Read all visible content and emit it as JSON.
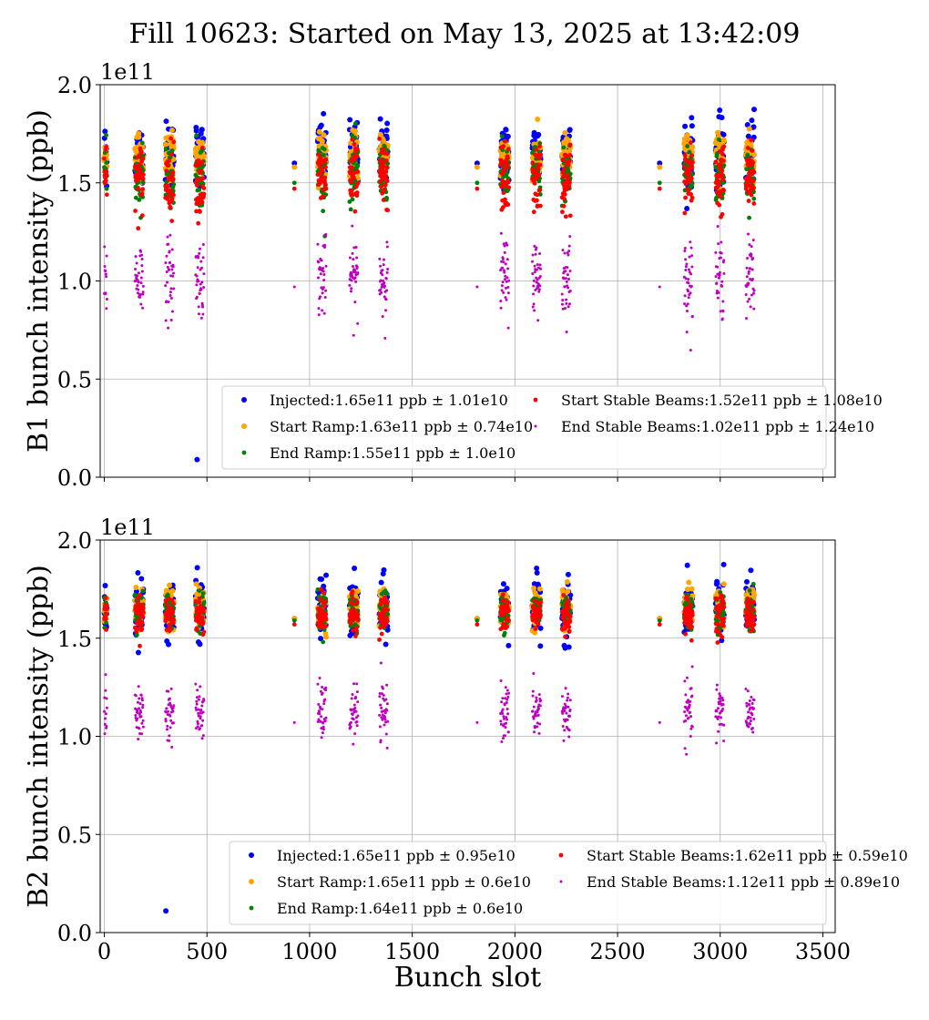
{
  "figure": {
    "title": "Fill 10623: Started on May 13, 2025 at 13:42:09",
    "xlabel": "Bunch slot",
    "exponent_label": "1e11"
  },
  "chart_data": [
    {
      "type": "scatter",
      "ylabel": "B1 bunch intensity (ppb)",
      "xlim": [
        -20,
        3560
      ],
      "ylim": [
        0.0,
        2.0
      ],
      "y_scale_note": "1e11",
      "xticks": [
        0,
        500,
        1000,
        1500,
        2000,
        2500,
        3000,
        3500
      ],
      "yticks": [
        0.0,
        0.5,
        1.0,
        1.5,
        2.0
      ],
      "ytick_labels": [
        "0.0",
        "0.5",
        "1.0",
        "1.5",
        "2.0"
      ],
      "grid": true,
      "legend_position": "lower-right",
      "trains": [
        {
          "x_start": 0,
          "n": 12,
          "step": 1
        },
        {
          "x_start": 150,
          "n": 36,
          "step": 1
        },
        {
          "x_start": 298,
          "n": 36,
          "step": 1
        },
        {
          "x_start": 445,
          "n": 36,
          "step": 1
        },
        {
          "x_start": 926,
          "n": 1,
          "step": 1
        },
        {
          "x_start": 1040,
          "n": 36,
          "step": 1
        },
        {
          "x_start": 1195,
          "n": 36,
          "step": 1
        },
        {
          "x_start": 1340,
          "n": 36,
          "step": 1
        },
        {
          "x_start": 1816,
          "n": 1,
          "step": 1
        },
        {
          "x_start": 1930,
          "n": 36,
          "step": 1
        },
        {
          "x_start": 2085,
          "n": 36,
          "step": 1
        },
        {
          "x_start": 2230,
          "n": 36,
          "step": 1
        },
        {
          "x_start": 2705,
          "n": 1,
          "step": 1
        },
        {
          "x_start": 2825,
          "n": 36,
          "step": 1
        },
        {
          "x_start": 2978,
          "n": 36,
          "step": 1
        },
        {
          "x_start": 3125,
          "n": 36,
          "step": 1
        }
      ],
      "series": [
        {
          "name": "Injected:1.65e11 ppb ± 1.01e10",
          "color": "#0000ff",
          "marker_size": 3.0,
          "mean": 1.65,
          "sd": 0.101,
          "outliers": [
            {
              "x": 452,
              "y": 0.09
            }
          ]
        },
        {
          "name": "Start Ramp:1.63e11 ppb ± 0.74e10",
          "color": "#ffa500",
          "marker_size": 3.0,
          "mean": 1.63,
          "sd": 0.074,
          "outliers": []
        },
        {
          "name": "End Ramp:1.55e11 ppb ± 1.0e10",
          "color": "#008000",
          "marker_size": 2.4,
          "mean": 1.55,
          "sd": 0.1,
          "outliers": []
        },
        {
          "name": "Start Stable Beams:1.52e11 ppb ± 1.08e10",
          "color": "#ff0000",
          "marker_size": 2.4,
          "mean": 1.52,
          "sd": 0.108,
          "outliers": []
        },
        {
          "name": "End Stable Beams:1.02e11 ppb ± 1.24e10",
          "color": "#c000c0",
          "marker_size": 1.5,
          "mean": 1.02,
          "sd": 0.124,
          "outliers": []
        }
      ]
    },
    {
      "type": "scatter",
      "ylabel": "B2 bunch intensity (ppb)",
      "xlabel": "Bunch slot",
      "xlim": [
        -20,
        3560
      ],
      "ylim": [
        0.0,
        2.0
      ],
      "y_scale_note": "1e11",
      "xticks": [
        0,
        500,
        1000,
        1500,
        2000,
        2500,
        3000,
        3500
      ],
      "xtick_labels": [
        "0",
        "500",
        "1000",
        "1500",
        "2000",
        "2500",
        "3000",
        "3500"
      ],
      "yticks": [
        0.0,
        0.5,
        1.0,
        1.5,
        2.0
      ],
      "ytick_labels": [
        "0.0",
        "0.5",
        "1.0",
        "1.5",
        "2.0"
      ],
      "grid": true,
      "legend_position": "lower-right",
      "trains": [
        {
          "x_start": 0,
          "n": 12,
          "step": 1
        },
        {
          "x_start": 150,
          "n": 36,
          "step": 1
        },
        {
          "x_start": 298,
          "n": 36,
          "step": 1
        },
        {
          "x_start": 445,
          "n": 36,
          "step": 1
        },
        {
          "x_start": 926,
          "n": 1,
          "step": 1
        },
        {
          "x_start": 1040,
          "n": 36,
          "step": 1
        },
        {
          "x_start": 1195,
          "n": 36,
          "step": 1
        },
        {
          "x_start": 1340,
          "n": 36,
          "step": 1
        },
        {
          "x_start": 1816,
          "n": 1,
          "step": 1
        },
        {
          "x_start": 1930,
          "n": 36,
          "step": 1
        },
        {
          "x_start": 2085,
          "n": 36,
          "step": 1
        },
        {
          "x_start": 2230,
          "n": 36,
          "step": 1
        },
        {
          "x_start": 2705,
          "n": 1,
          "step": 1
        },
        {
          "x_start": 2825,
          "n": 36,
          "step": 1
        },
        {
          "x_start": 2978,
          "n": 36,
          "step": 1
        },
        {
          "x_start": 3125,
          "n": 36,
          "step": 1
        }
      ],
      "series": [
        {
          "name": "Injected:1.65e11 ppb ± 0.95e10",
          "color": "#0000ff",
          "marker_size": 3.0,
          "mean": 1.65,
          "sd": 0.095,
          "outliers": [
            {
              "x": 300,
              "y": 0.11
            }
          ]
        },
        {
          "name": "Start Ramp:1.65e11 ppb ± 0.6e10",
          "color": "#ffa500",
          "marker_size": 3.0,
          "mean": 1.65,
          "sd": 0.06,
          "outliers": []
        },
        {
          "name": "End Ramp:1.64e11 ppb ± 0.6e10",
          "color": "#008000",
          "marker_size": 2.4,
          "mean": 1.64,
          "sd": 0.06,
          "outliers": []
        },
        {
          "name": "Start Stable Beams:1.62e11 ppb ± 0.59e10",
          "color": "#ff0000",
          "marker_size": 2.4,
          "mean": 1.62,
          "sd": 0.059,
          "outliers": []
        },
        {
          "name": "End Stable Beams:1.12e11 ppb ± 0.89e10",
          "color": "#c000c0",
          "marker_size": 1.5,
          "mean": 1.12,
          "sd": 0.089,
          "outliers": []
        }
      ]
    }
  ]
}
